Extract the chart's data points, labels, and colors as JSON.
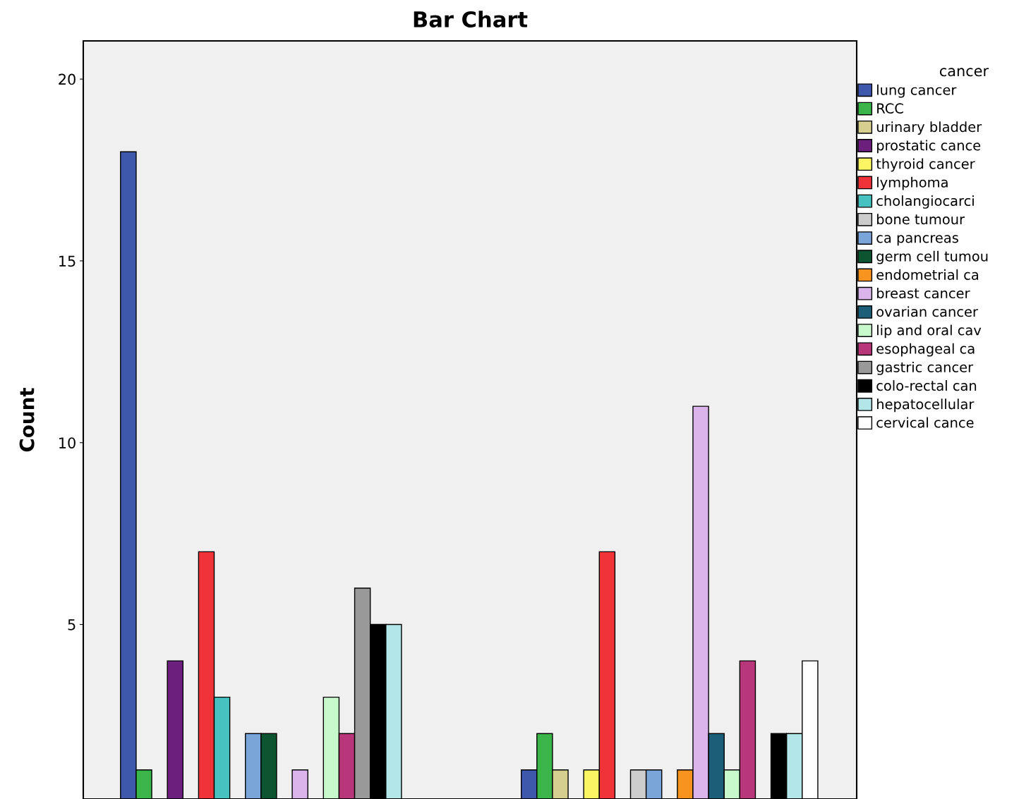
{
  "chart_data": {
    "type": "bar",
    "title": "Bar Chart",
    "ylabel": "Count",
    "legend_title": "cancer",
    "legend": "right",
    "grid": false,
    "categories": [
      null,
      null
    ],
    "ylim": [
      0.2,
      21.05
    ],
    "yticks": [
      5,
      10,
      15,
      20
    ],
    "series": [
      {
        "name": "lung cancer",
        "color": "#3e58ac",
        "values": [
          18,
          1
        ]
      },
      {
        "name": "RCC",
        "color": "#3bb54a",
        "values": [
          1,
          2
        ]
      },
      {
        "name": "urinary bladder",
        "color": "#d5ce8f",
        "values": [
          null,
          1
        ]
      },
      {
        "name": "prostatic cance",
        "color": "#6d1f7e",
        "values": [
          4,
          null
        ]
      },
      {
        "name": "thyroid cancer",
        "color": "#fbf563",
        "values": [
          null,
          1
        ]
      },
      {
        "name": "lymphoma",
        "color": "#ef3338",
        "values": [
          7,
          7
        ]
      },
      {
        "name": "cholangiocarci",
        "color": "#48c1c1",
        "values": [
          3,
          null
        ]
      },
      {
        "name": "bone tumour",
        "color": "#cccccc",
        "values": [
          null,
          1
        ]
      },
      {
        "name": "ca pancreas",
        "color": "#79a5d8",
        "values": [
          2,
          1
        ]
      },
      {
        "name": "germ cell tumou",
        "color": "#0d5431",
        "values": [
          2,
          null
        ]
      },
      {
        "name": "endometrial ca",
        "color": "#f7931e",
        "values": [
          null,
          1
        ]
      },
      {
        "name": "breast cancer",
        "color": "#dbb4ec",
        "values": [
          1,
          11
        ]
      },
      {
        "name": "ovarian cancer",
        "color": "#1c5e78",
        "values": [
          null,
          2
        ]
      },
      {
        "name": "lip and oral cav",
        "color": "#c8f9cd",
        "values": [
          3,
          1
        ]
      },
      {
        "name": "esophageal ca",
        "color": "#b8377a",
        "values": [
          2,
          4
        ]
      },
      {
        "name": "gastric cancer",
        "color": "#999999",
        "values": [
          6,
          null
        ]
      },
      {
        "name": "colo-rectal can",
        "color": "#000000",
        "values": [
          5,
          2
        ]
      },
      {
        "name": "hepatocellular",
        "color": "#b3e6e8",
        "values": [
          5,
          2
        ]
      },
      {
        "name": "cervical cance",
        "color": "#ffffff",
        "values": [
          null,
          4
        ]
      }
    ]
  }
}
